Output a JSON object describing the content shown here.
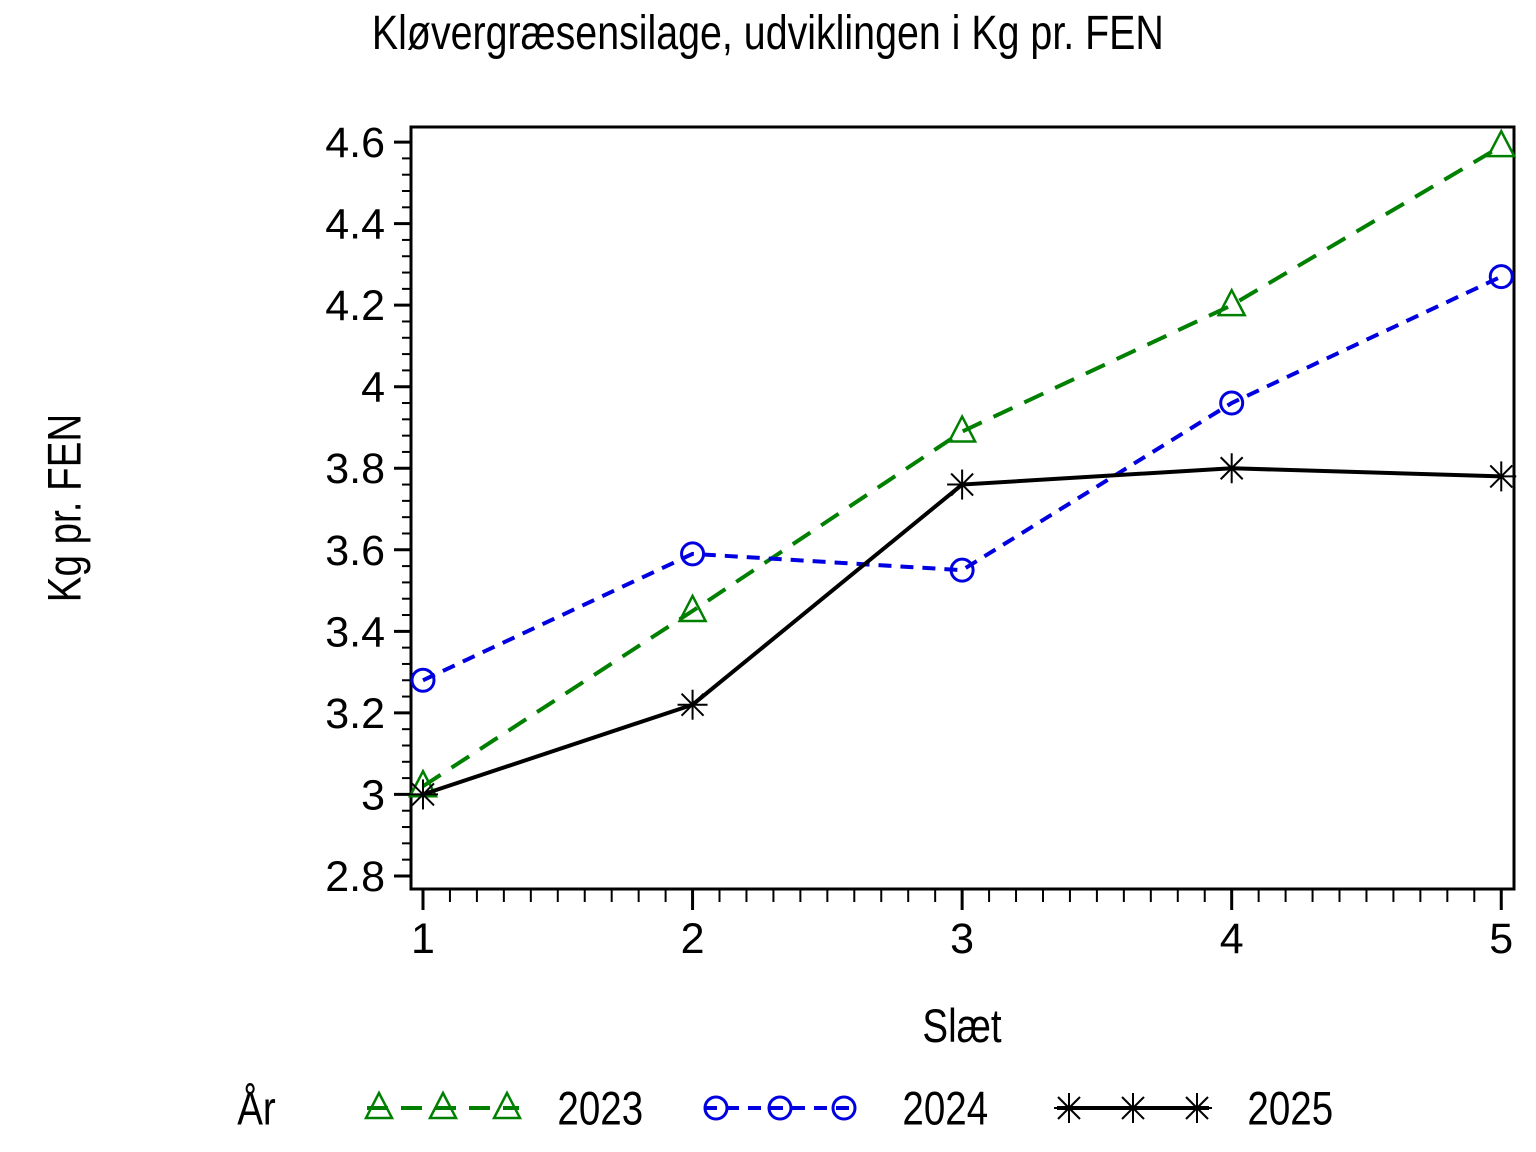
{
  "chart_data": {
    "type": "line",
    "title": "Kløvergræsensilage, udviklingen i Kg pr. FEN",
    "xlabel": "Slæt",
    "ylabel": "Kg pr. FEN",
    "legend_label": "År",
    "legend_position": "bottom",
    "grid": false,
    "x": [
      1,
      2,
      3,
      4,
      5
    ],
    "x_ticks": [
      "1",
      "2",
      "3",
      "4",
      "5"
    ],
    "x_minor_step": 0.1,
    "y_ticks": [
      2.8,
      3.0,
      3.2,
      3.4,
      3.6,
      3.8,
      4.0,
      4.2,
      4.4,
      4.6
    ],
    "y_tick_labels": [
      "2.8",
      "3",
      "3.2",
      "3.4",
      "3.6",
      "3.8",
      "4",
      "4.2",
      "4.4",
      "4.6"
    ],
    "y_minor_step": 0.04,
    "xlim": [
      0.9555,
      5.0473
    ],
    "ylim": [
      2.768,
      4.637
    ],
    "series": [
      {
        "name": "2023",
        "color": "#008000",
        "line_style": "dashed-long",
        "marker": "triangle",
        "values": [
          3.02,
          3.45,
          3.89,
          4.2,
          4.59
        ]
      },
      {
        "name": "2024",
        "color": "#0000E0",
        "line_style": "dashed-short",
        "marker": "circle",
        "values": [
          3.28,
          3.59,
          3.55,
          3.96,
          4.27
        ]
      },
      {
        "name": "2025",
        "color": "#000000",
        "line_style": "solid",
        "marker": "star",
        "values": [
          3.0,
          3.22,
          3.76,
          3.8,
          3.78
        ]
      }
    ]
  }
}
